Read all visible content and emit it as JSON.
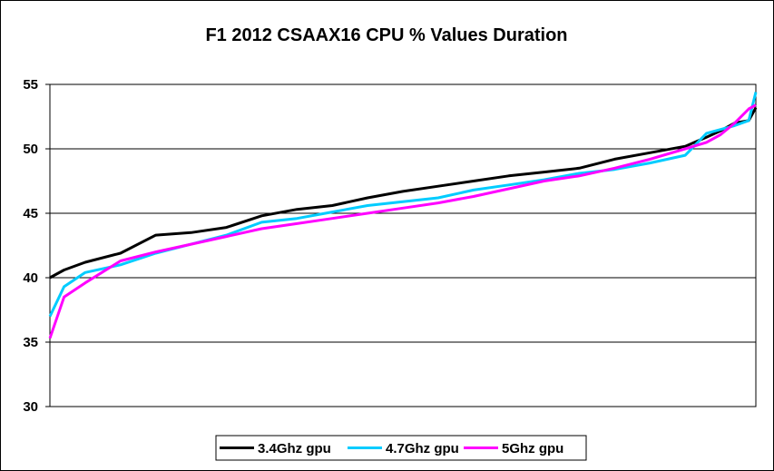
{
  "chart_data": {
    "type": "line",
    "title": "F1 2012 CSAAX16 CPU % Values Duration",
    "xlabel": "",
    "ylabel": "",
    "ylim": [
      30,
      55
    ],
    "yticks": [
      "30",
      "35",
      "40",
      "45",
      "50",
      "55"
    ],
    "grid": true,
    "legend_position": "bottom",
    "x": [
      0,
      0.02,
      0.05,
      0.1,
      0.15,
      0.2,
      0.25,
      0.3,
      0.35,
      0.4,
      0.45,
      0.5,
      0.55,
      0.6,
      0.65,
      0.7,
      0.75,
      0.8,
      0.85,
      0.9,
      0.93,
      0.95,
      0.97,
      0.99,
      1.0
    ],
    "series": [
      {
        "name": "3.4Ghz gpu",
        "color": "#000000",
        "values": [
          40.0,
          40.6,
          41.2,
          41.9,
          43.3,
          43.5,
          43.9,
          44.8,
          45.3,
          45.6,
          46.2,
          46.7,
          47.1,
          47.5,
          47.9,
          48.2,
          48.5,
          49.2,
          49.7,
          50.2,
          50.9,
          51.4,
          52.0,
          52.2,
          53.2
        ]
      },
      {
        "name": "4.7Ghz gpu",
        "color": "#00CCFF",
        "values": [
          37.0,
          39.3,
          40.4,
          41.0,
          41.9,
          42.6,
          43.3,
          44.3,
          44.6,
          45.1,
          45.6,
          45.9,
          46.2,
          46.8,
          47.2,
          47.6,
          48.1,
          48.4,
          48.9,
          49.5,
          51.2,
          51.5,
          51.8,
          52.2,
          54.4
        ]
      },
      {
        "name": "5Ghz gpu",
        "color": "#FF00FF",
        "values": [
          35.3,
          38.5,
          39.6,
          41.3,
          42.0,
          42.6,
          43.2,
          43.8,
          44.2,
          44.6,
          45.0,
          45.4,
          45.8,
          46.3,
          46.9,
          47.5,
          47.9,
          48.5,
          49.2,
          50.0,
          50.5,
          51.1,
          52.0,
          53.1,
          53.4
        ]
      }
    ]
  }
}
